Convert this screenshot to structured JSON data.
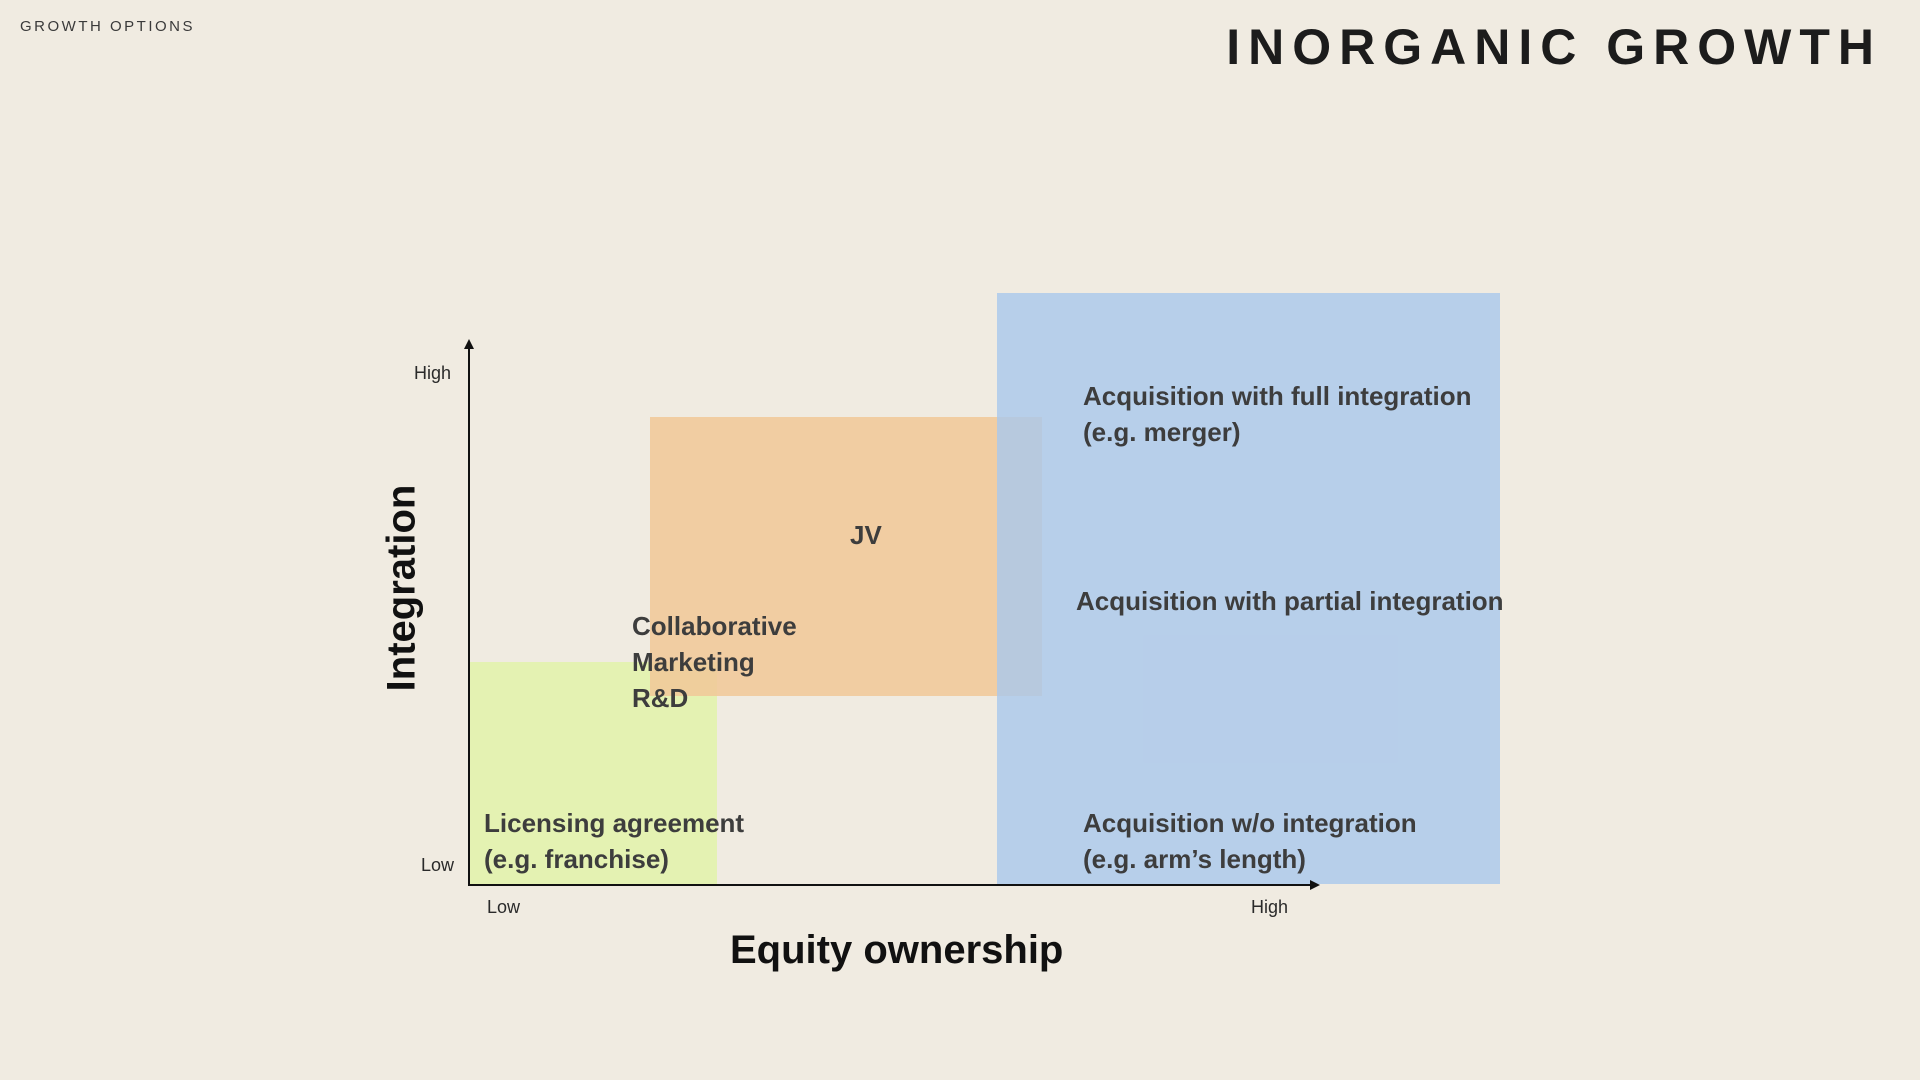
{
  "header": {
    "section_label": "GROWTH OPTIONS",
    "title": "INORGANIC GROWTH"
  },
  "diagram": {
    "y_axis": {
      "title": "Integration",
      "low_label": "Low",
      "high_label": "High"
    },
    "x_axis": {
      "title": "Equity ownership",
      "low_label": "Low",
      "high_label": "High"
    },
    "regions": {
      "licensing": {
        "line1": "Licensing agreement",
        "line2": "(e.g. franchise)",
        "color": "#E4F2B2"
      },
      "collaborative": {
        "line1": "Collaborative",
        "line2": "Marketing",
        "line3": "R&D",
        "color": "#F0C898"
      },
      "jv": {
        "label": "JV"
      },
      "acquisition": {
        "color": "#AAC8EC",
        "full": {
          "line1": "Acquisition with full integration",
          "line2": "(e.g. merger)"
        },
        "partial": {
          "line1": "Acquisition with partial integration"
        },
        "none": {
          "line1": "Acquisition w/o integration",
          "line2": "(e.g. arm’s length)"
        }
      }
    }
  }
}
